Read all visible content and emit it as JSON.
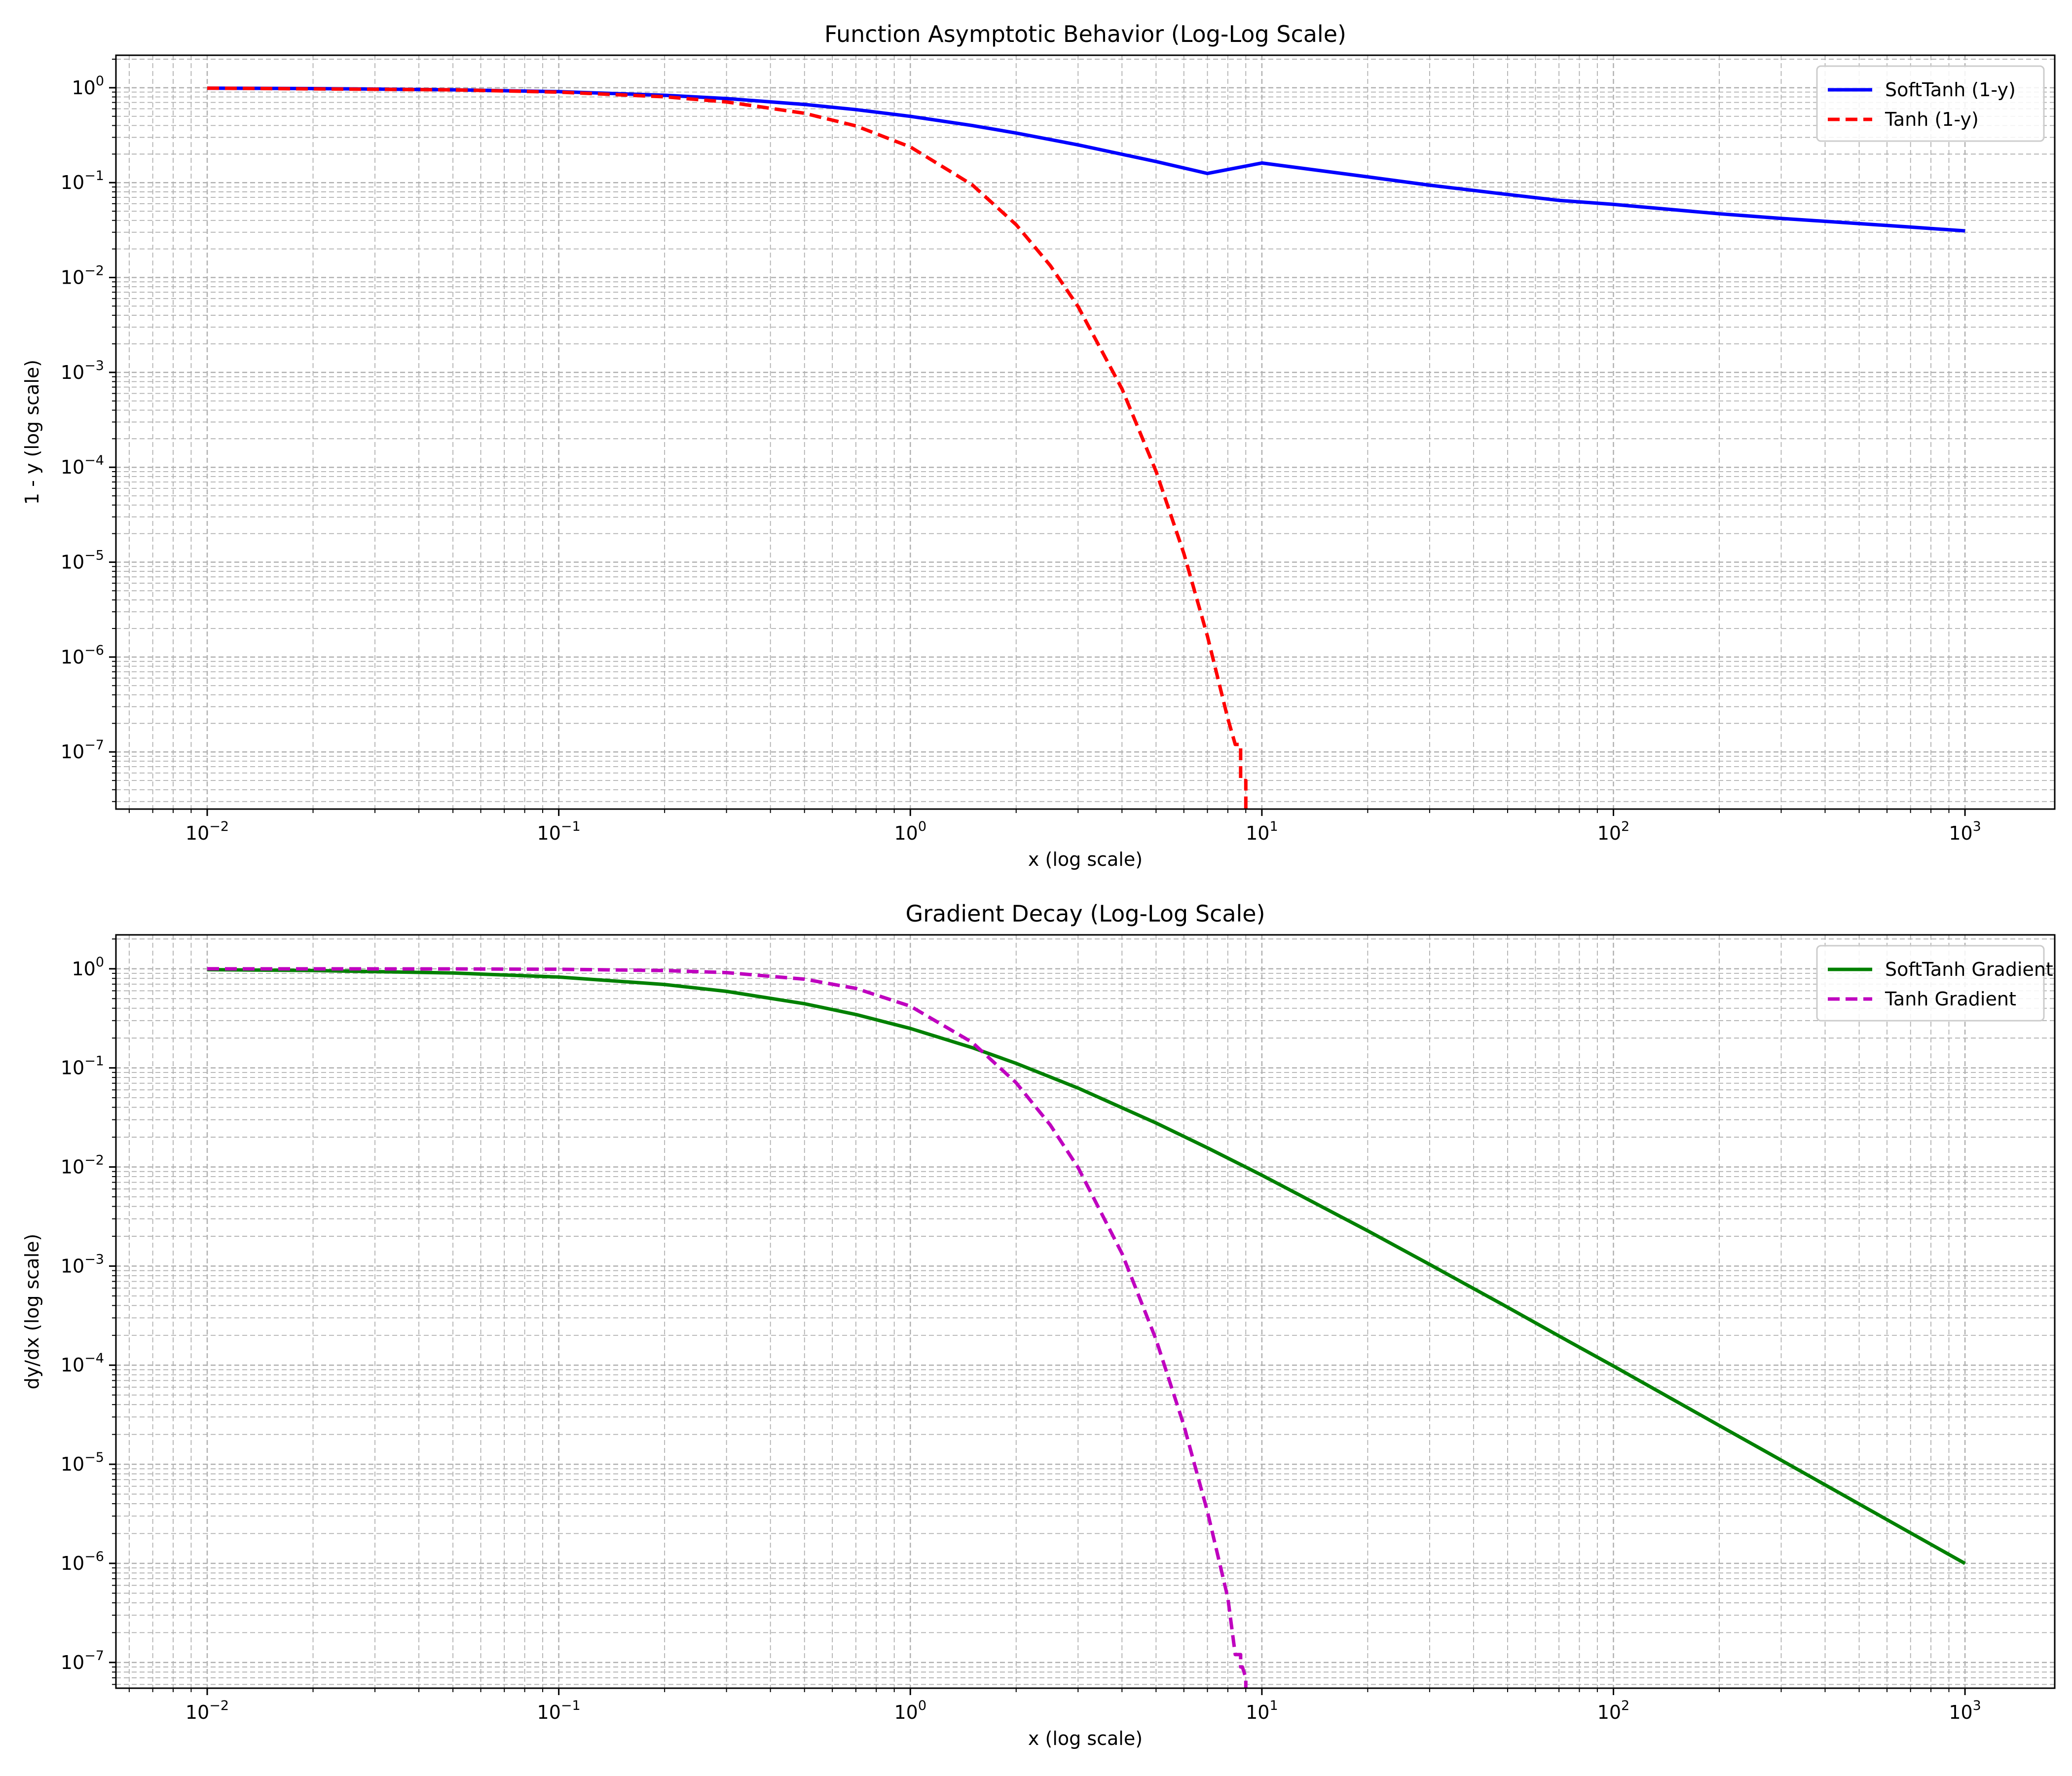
{
  "chart_data": [
    {
      "type": "line",
      "title": "Function Asymptotic Behavior (Log-Log Scale)",
      "xlabel": "x (log scale)",
      "ylabel": "1 - y (log scale)",
      "xscale": "log",
      "yscale": "log",
      "xlim": [
        0.0055,
        1800
      ],
      "ylim": [
        2.5e-08,
        2.2
      ],
      "xticks": [
        {
          "base": "10",
          "exp": "−2",
          "value": 0.01
        },
        {
          "base": "10",
          "exp": "−1",
          "value": 0.1
        },
        {
          "base": "10",
          "exp": "0",
          "value": 1
        },
        {
          "base": "10",
          "exp": "1",
          "value": 10
        },
        {
          "base": "10",
          "exp": "2",
          "value": 100
        },
        {
          "base": "10",
          "exp": "3",
          "value": 1000
        }
      ],
      "yticks": [
        {
          "base": "10",
          "exp": "0",
          "value": 1
        },
        {
          "base": "10",
          "exp": "−1",
          "value": 0.1
        },
        {
          "base": "10",
          "exp": "−2",
          "value": 0.01
        },
        {
          "base": "10",
          "exp": "−3",
          "value": 0.001
        },
        {
          "base": "10",
          "exp": "−4",
          "value": 0.0001
        },
        {
          "base": "10",
          "exp": "−5",
          "value": 1e-05
        },
        {
          "base": "10",
          "exp": "−6",
          "value": 1e-06
        },
        {
          "base": "10",
          "exp": "−7",
          "value": 1e-07
        }
      ],
      "grid": true,
      "legend_position": "top-right",
      "series": [
        {
          "name": "SoftTanh (1-y)",
          "color": "#0000ff",
          "style": "solid",
          "x": [
            0.01,
            0.02,
            0.05,
            0.1,
            0.2,
            0.3,
            0.5,
            0.7,
            1,
            1.5,
            2,
            3,
            5,
            7,
            10,
            20,
            30,
            50,
            70,
            100,
            200,
            300,
            500,
            700,
            1000
          ],
          "y": [
            0.99,
            0.98,
            0.952,
            0.909,
            0.833,
            0.769,
            0.667,
            0.588,
            0.5,
            0.4,
            0.333,
            0.25,
            0.167,
            0.125,
            0.161,
            0.115,
            0.094,
            0.075,
            0.065,
            0.059,
            0.047,
            0.042,
            0.037,
            0.034,
            0.031
          ]
        },
        {
          "name": "Tanh (1-y)",
          "color": "#ff0000",
          "style": "dashed",
          "x": [
            0.01,
            0.05,
            0.1,
            0.2,
            0.3,
            0.5,
            0.7,
            1,
            1.5,
            2,
            2.5,
            3,
            4,
            5,
            6,
            7,
            8,
            8.4,
            8.7,
            8.7,
            8.8,
            9,
            9
          ],
          "y": [
            0.99,
            0.95,
            0.9,
            0.803,
            0.709,
            0.538,
            0.396,
            0.238,
            0.0949,
            0.036,
            0.0134,
            0.00495,
            0.000671,
            9.08e-05,
            1.23e-05,
            1.66e-06,
            2.25e-07,
            1.2e-07,
            1.2e-07,
            5e-08,
            5e-08,
            5e-08,
            2.5e-08
          ]
        }
      ]
    },
    {
      "type": "line",
      "title": "Gradient Decay (Log-Log Scale)",
      "xlabel": "x (log scale)",
      "ylabel": "dy/dx (log scale)",
      "xscale": "log",
      "yscale": "log",
      "xlim": [
        0.0055,
        1800
      ],
      "ylim": [
        5.5e-08,
        2.2
      ],
      "xticks": [
        {
          "base": "10",
          "exp": "−2",
          "value": 0.01
        },
        {
          "base": "10",
          "exp": "−1",
          "value": 0.1
        },
        {
          "base": "10",
          "exp": "0",
          "value": 1
        },
        {
          "base": "10",
          "exp": "1",
          "value": 10
        },
        {
          "base": "10",
          "exp": "2",
          "value": 100
        },
        {
          "base": "10",
          "exp": "3",
          "value": 1000
        }
      ],
      "yticks": [
        {
          "base": "10",
          "exp": "0",
          "value": 1
        },
        {
          "base": "10",
          "exp": "−1",
          "value": 0.1
        },
        {
          "base": "10",
          "exp": "−2",
          "value": 0.01
        },
        {
          "base": "10",
          "exp": "−3",
          "value": 0.001
        },
        {
          "base": "10",
          "exp": "−4",
          "value": 0.0001
        },
        {
          "base": "10",
          "exp": "−5",
          "value": 1e-05
        },
        {
          "base": "10",
          "exp": "−6",
          "value": 1e-06
        },
        {
          "base": "10",
          "exp": "−7",
          "value": 1e-07
        }
      ],
      "grid": true,
      "legend_position": "top-right",
      "series": [
        {
          "name": "SoftTanh Gradient",
          "color": "#008000",
          "style": "solid",
          "x": [
            0.01,
            0.02,
            0.05,
            0.1,
            0.2,
            0.3,
            0.5,
            0.7,
            1,
            1.5,
            2,
            3,
            5,
            7,
            10,
            20,
            30,
            50,
            70,
            100,
            200,
            300,
            500,
            700,
            1000
          ],
          "y": [
            0.98,
            0.961,
            0.907,
            0.826,
            0.694,
            0.592,
            0.444,
            0.346,
            0.25,
            0.16,
            0.111,
            0.0625,
            0.0278,
            0.0156,
            0.00826,
            0.00227,
            0.00104,
            0.000384,
            0.000197,
            9.8e-05,
            2.46e-05,
            1.1e-05,
            3.97e-06,
            2.03e-06,
            9.98e-07
          ]
        },
        {
          "name": "Tanh Gradient",
          "color": "#bf00bf",
          "style": "dashed",
          "x": [
            0.01,
            0.05,
            0.1,
            0.2,
            0.3,
            0.5,
            0.7,
            1,
            1.5,
            2,
            2.5,
            3,
            4,
            5,
            6,
            7,
            8,
            8.4,
            8.7,
            8.7,
            8.8,
            9,
            9
          ],
          "y": [
            1,
            0.998,
            0.99,
            0.961,
            0.915,
            0.786,
            0.634,
            0.42,
            0.181,
            0.0707,
            0.0266,
            0.00987,
            0.00134,
            0.000182,
            2.46e-05,
            3.33e-06,
            4.5e-07,
            1.2e-07,
            1.2e-07,
            9e-08,
            9e-08,
            7e-08,
            5.5e-08
          ]
        }
      ]
    }
  ]
}
